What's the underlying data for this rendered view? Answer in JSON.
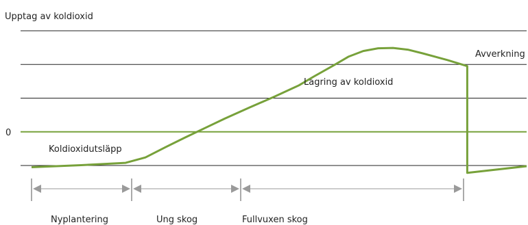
{
  "chart_data": {
    "type": "line",
    "title": "",
    "ylabel": "Upptag av koldioxid",
    "zero_tick_label": "0",
    "colors": {
      "curve": "#77A13A",
      "grid": "#222222",
      "phase_line": "#9a9a9a",
      "phase_tick": "#555555"
    },
    "annotations": {
      "emission": "Koldioxidutsläpp",
      "storage": "Lagring av koldioxid",
      "harvest": "Avverkning"
    },
    "phases": [
      "Nyplantering",
      "Ung skog",
      "Fullvuxen skog"
    ],
    "ylim": [
      -1,
      3
    ],
    "grid": true,
    "series": [
      {
        "points": [
          [
            0,
            -1.05
          ],
          [
            10,
            -0.99
          ],
          [
            19,
            -0.92
          ],
          [
            23,
            -0.76
          ],
          [
            27,
            -0.46
          ],
          [
            31,
            -0.17
          ],
          [
            35,
            0.11
          ],
          [
            39,
            0.39
          ],
          [
            44,
            0.72
          ],
          [
            49,
            1.04
          ],
          [
            54,
            1.38
          ],
          [
            57,
            1.64
          ],
          [
            61,
            1.97
          ],
          [
            64,
            2.23
          ],
          [
            67,
            2.4
          ],
          [
            70,
            2.48
          ],
          [
            73,
            2.49
          ],
          [
            76,
            2.44
          ],
          [
            79,
            2.33
          ],
          [
            84,
            2.13
          ],
          [
            88,
            1.95
          ],
          [
            88,
            -1.22
          ],
          [
            100,
            -1.02
          ]
        ]
      }
    ]
  }
}
